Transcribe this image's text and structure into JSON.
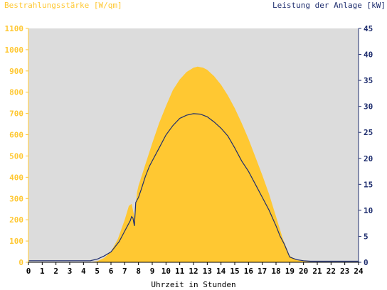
{
  "chart_data": {
    "type": "area+line",
    "left_axis_title": "Bestrahlungsstärke [W/qm]",
    "right_axis_title": "Leistung der Anlage [kW]",
    "xlabel": "Uhrzeit in Stunden",
    "xlim": [
      0,
      24
    ],
    "ylim_left": [
      0,
      1100
    ],
    "ylim_right": [
      0,
      45
    ],
    "x_ticks": [
      "0",
      "1",
      "2",
      "3",
      "4",
      "5",
      "6",
      "7",
      "8",
      "9",
      "10",
      "11",
      "12",
      "13",
      "14",
      "15",
      "16",
      "17",
      "18",
      "19",
      "20",
      "21",
      "22",
      "23",
      "24"
    ],
    "y_ticks_left": [
      "0",
      "100",
      "200",
      "300",
      "400",
      "500",
      "600",
      "700",
      "800",
      "900",
      "1000",
      "1100"
    ],
    "y_ticks_right": [
      "0",
      "5",
      "10",
      "15",
      "20",
      "25",
      "30",
      "35",
      "40",
      "45"
    ],
    "colors": {
      "irradiance": "#ffc832",
      "power": "#1e2d6e",
      "plot_bg": "#dcdcdc"
    },
    "series": [
      {
        "name": "Bestrahlungsstärke",
        "axis": "left",
        "style": "area",
        "x": [
          0,
          4.5,
          5,
          5.5,
          6,
          6.5,
          7,
          7.3,
          7.5,
          7.7,
          7.9,
          8,
          8.5,
          9,
          9.5,
          10,
          10.5,
          11,
          11.5,
          12,
          12.3,
          12.7,
          13,
          13.5,
          14,
          14.5,
          15,
          15.5,
          16,
          16.5,
          17,
          17.5,
          18,
          18.5,
          19,
          19.5,
          20,
          20.5,
          21,
          24
        ],
        "values": [
          0,
          0,
          5,
          20,
          50,
          110,
          200,
          265,
          275,
          215,
          330,
          360,
          460,
          560,
          655,
          735,
          810,
          860,
          895,
          915,
          920,
          915,
          905,
          875,
          835,
          785,
          725,
          655,
          580,
          495,
          410,
          320,
          215,
          110,
          30,
          10,
          5,
          2,
          0,
          0
        ]
      },
      {
        "name": "Leistung",
        "axis": "right",
        "style": "line",
        "x": [
          0,
          4.5,
          5,
          5.5,
          6,
          6.3,
          6.6,
          7,
          7.2,
          7.4,
          7.5,
          7.6,
          7.7,
          7.8,
          8,
          8.2,
          8.5,
          8.8,
          9,
          9.5,
          10,
          10.5,
          11,
          11.5,
          12,
          12.5,
          13,
          13.5,
          14,
          14.5,
          15,
          15.5,
          16,
          16.5,
          17,
          17.5,
          18,
          18.3,
          18.6,
          19,
          19.5,
          20,
          20.5,
          21,
          24
        ],
        "values": [
          0.3,
          0.3,
          0.6,
          1.2,
          2,
          3,
          4,
          6,
          7,
          8,
          8.8,
          8.5,
          7,
          11.5,
          12.5,
          14,
          16.5,
          18.5,
          19.5,
          22,
          24.5,
          26.3,
          27.7,
          28.3,
          28.6,
          28.5,
          28,
          27,
          25.8,
          24.3,
          22,
          19.5,
          17.5,
          15,
          12.5,
          10,
          7,
          5,
          3.5,
          1,
          0.5,
          0.3,
          0.2,
          0.2,
          0.2
        ]
      }
    ]
  }
}
